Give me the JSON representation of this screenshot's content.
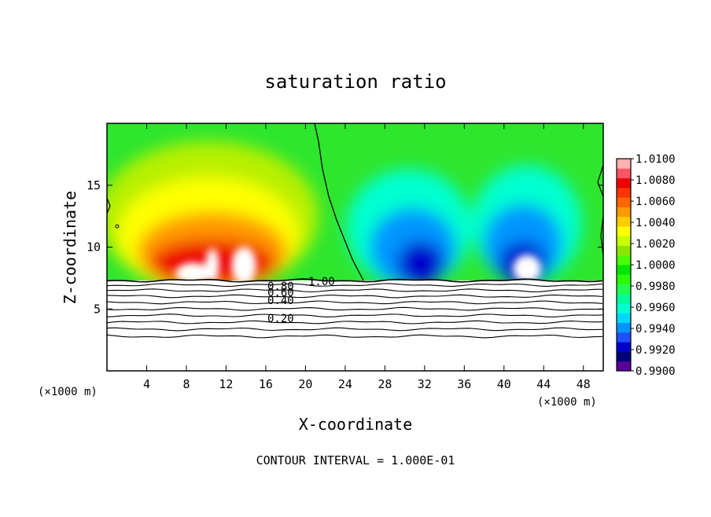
{
  "chart_data": {
    "type": "heatmap",
    "title": "saturation ratio",
    "xlabel": "X-coordinate",
    "ylabel": "Z-coordinate",
    "x_unit_label": "(×1000 m)",
    "x_unit_label_right": "(×1000 m)",
    "xlim": [
      0,
      50
    ],
    "ylim": [
      0,
      20
    ],
    "x_ticks": [
      4,
      8,
      12,
      16,
      20,
      24,
      28,
      32,
      36,
      40,
      44,
      48
    ],
    "y_ticks": [
      5,
      10,
      15
    ],
    "contour_interval_text": "CONTOUR INTERVAL = 1.000E-01",
    "colorbar": {
      "min": 0.99,
      "max": 1.01,
      "tick_labels": [
        "0.9900",
        "0.9920",
        "0.9940",
        "0.9960",
        "0.9980",
        "1.0000",
        "1.0020",
        "1.0040",
        "1.0060",
        "1.0080",
        "1.0100"
      ],
      "colors": [
        "#5a0099",
        "#00007a",
        "#0000cc",
        "#1e50ff",
        "#0096ff",
        "#00d7ff",
        "#00ffd0",
        "#00ff96",
        "#23ff50",
        "#2aff00",
        "#00e600",
        "#4aff00",
        "#8ce600",
        "#c8ff00",
        "#ffff00",
        "#ffcc00",
        "#ff9900",
        "#ff6600",
        "#ff3300",
        "#ee0000",
        "#ff5566",
        "#ffb0b0"
      ]
    },
    "contour_labels": [
      "1.00",
      "0.80",
      "0.60",
      "0.40",
      "0.20"
    ],
    "contour_levels": [
      1.0,
      0.9,
      0.8,
      0.7,
      0.6,
      0.5,
      0.4,
      0.3,
      0.2,
      0.1
    ],
    "grid": false,
    "legend": "colorbar-right"
  }
}
